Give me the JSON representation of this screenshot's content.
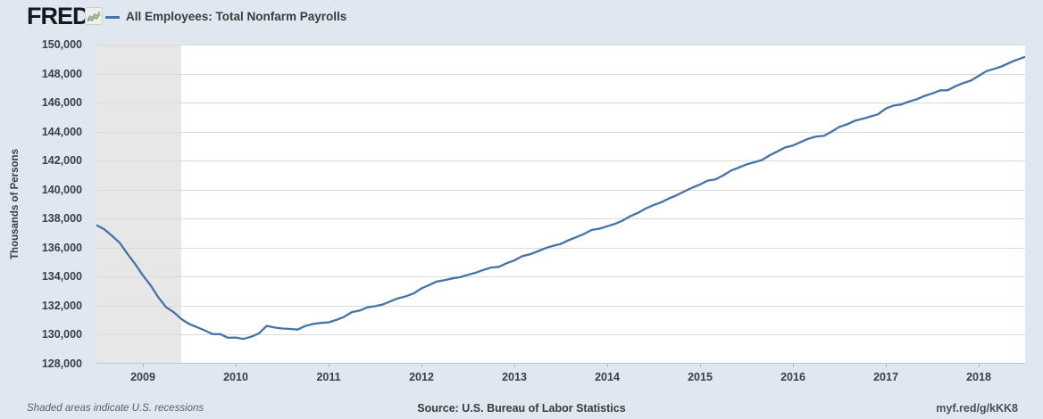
{
  "header": {
    "logo_text": "FRED",
    "logo_registered": "®",
    "series_title": "All Employees: Total Nonfarm Payrolls",
    "legend_color": "#4572a7"
  },
  "y_axis": {
    "title": "Thousands of Persons",
    "ticks": [
      150000,
      148000,
      146000,
      144000,
      142000,
      140000,
      138000,
      136000,
      134000,
      132000,
      130000,
      128000
    ]
  },
  "x_axis": {
    "ticks": [
      2009,
      2010,
      2011,
      2012,
      2013,
      2014,
      2015,
      2016,
      2017,
      2018
    ]
  },
  "footer": {
    "note": "Shaded areas indicate U.S. recessions",
    "source": "Source: U.S. Bureau of Labor Statistics",
    "link": "myf.red/g/kKK8"
  },
  "colors": {
    "background": "#dfe7f1",
    "plot_background": "#ffffff",
    "gridline": "#dadada",
    "recession_shading": "#e7e7e7",
    "line": "#4572a7",
    "text": "#3a3e45"
  },
  "chart_data": {
    "type": "line",
    "title": "All Employees: Total Nonfarm Payrolls",
    "ylabel": "Thousands of Persons",
    "frequency": "monthly",
    "x_start": "2008-07",
    "x_end": "2018-07",
    "ylim": [
      128000,
      150000
    ],
    "y_tick_step": 2000,
    "x_tick_years": [
      2009,
      2010,
      2011,
      2012,
      2013,
      2014,
      2015,
      2016,
      2017,
      2018
    ],
    "legend_position": "top-left",
    "grid": true,
    "line_color": "#4572a7",
    "recession_shading": {
      "start": "2008-07",
      "end": "2009-06",
      "note": "band clipped at left edge of plot"
    },
    "values": [
      137550,
      137275,
      136822,
      136338,
      135576,
      134879,
      134098,
      133404,
      132578,
      131894,
      131545,
      131072,
      130735,
      130519,
      130295,
      130048,
      130039,
      129787,
      129808,
      129706,
      129862,
      130094,
      130610,
      130493,
      130425,
      130398,
      130352,
      130606,
      130743,
      130814,
      130853,
      131021,
      131233,
      131561,
      131663,
      131883,
      131963,
      132085,
      132306,
      132510,
      132651,
      132848,
      133194,
      133426,
      133669,
      133765,
      133878,
      133966,
      134126,
      134276,
      134467,
      134632,
      134681,
      134923,
      135121,
      135413,
      135538,
      135740,
      135964,
      136130,
      136257,
      136509,
      136722,
      136947,
      137224,
      137308,
      137476,
      137644,
      137869,
      138179,
      138409,
      138705,
      138937,
      139136,
      139397,
      139619,
      139890,
      140139,
      140360,
      140626,
      140711,
      140988,
      141317,
      141519,
      141741,
      141890,
      142041,
      142371,
      142637,
      142906,
      143046,
      143283,
      143508,
      143664,
      143707,
      144004,
      144329,
      144505,
      144754,
      144878,
      145042,
      145197,
      145596,
      145796,
      145869,
      146076,
      146231,
      146462,
      146633,
      146841,
      146856,
      147128,
      147344,
      147519,
      147845,
      148169,
      148324,
      148499,
      148754,
      148967,
      149150
    ]
  }
}
